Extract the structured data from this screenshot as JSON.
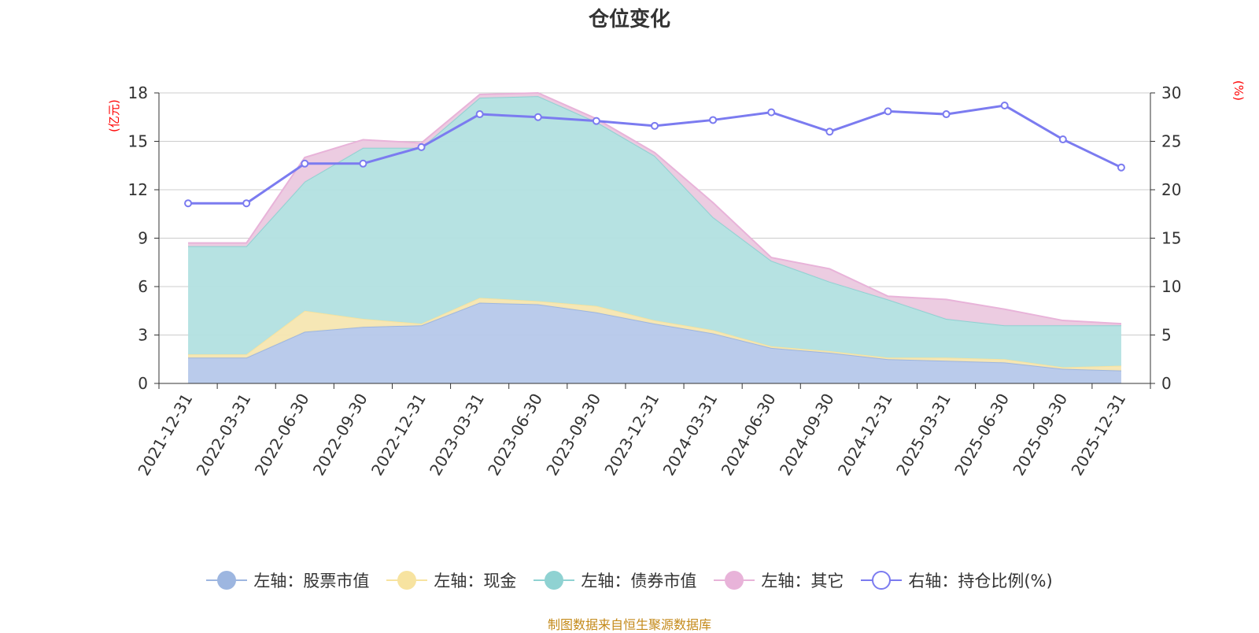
{
  "chart_data": {
    "type": "area",
    "title": "仓位变化",
    "left_axis_unit": "(亿元)",
    "right_axis_unit": "(%)",
    "categories": [
      "2021-12-31",
      "2022-03-31",
      "2022-06-30",
      "2022-09-30",
      "2022-12-31",
      "2023-03-31",
      "2023-06-30",
      "2023-09-30",
      "2023-12-31",
      "2024-03-31",
      "2024-06-30",
      "2024-09-30",
      "2024-12-31",
      "2025-03-31",
      "2025-06-30",
      "2025-09-30",
      "2025-12-31"
    ],
    "left_ylim": [
      0,
      18
    ],
    "left_ticks": [
      0,
      3,
      6,
      9,
      12,
      15,
      18
    ],
    "right_ylim": [
      0,
      30
    ],
    "right_ticks": [
      0,
      5,
      10,
      15,
      20,
      25,
      30
    ],
    "stacked_series": [
      {
        "name": "左轴：股票市值",
        "color": "#9db6e0",
        "fill": "#b6c8ea",
        "values": [
          1.6,
          1.6,
          3.2,
          3.5,
          3.6,
          5.0,
          4.9,
          4.4,
          3.7,
          3.1,
          2.2,
          1.9,
          1.5,
          1.4,
          1.3,
          0.9,
          0.8
        ]
      },
      {
        "name": "左轴：现金",
        "color": "#f7e3a0",
        "fill": "#f6e6b1",
        "values": [
          0.2,
          0.2,
          1.3,
          0.5,
          0.1,
          0.3,
          0.2,
          0.4,
          0.2,
          0.2,
          0.1,
          0.1,
          0.1,
          0.2,
          0.2,
          0.1,
          0.3
        ]
      },
      {
        "name": "左轴：债券市值",
        "color": "#8fd2d2",
        "fill": "#b2e0e0",
        "values": [
          6.7,
          6.7,
          8.0,
          10.6,
          10.9,
          12.4,
          12.7,
          11.4,
          10.2,
          7.0,
          5.3,
          4.3,
          3.6,
          2.4,
          2.1,
          2.6,
          2.5
        ]
      },
      {
        "name": "左轴：其它",
        "color": "#e8b3d9",
        "fill": "#ebc9df",
        "values": [
          0.2,
          0.2,
          1.5,
          0.5,
          0.3,
          0.2,
          0.2,
          0.2,
          0.2,
          0.9,
          0.2,
          0.8,
          0.2,
          1.2,
          1.0,
          0.3,
          0.1
        ]
      }
    ],
    "line_series": {
      "name": "右轴：持仓比例(%)",
      "color": "#7b7bf0",
      "values": [
        18.6,
        18.6,
        22.7,
        22.7,
        24.4,
        27.8,
        27.5,
        27.1,
        26.6,
        27.2,
        28.0,
        26.0,
        28.1,
        27.8,
        28.7,
        25.2,
        22.3
      ]
    }
  },
  "legend": [
    {
      "label": "左轴：股票市值",
      "color": "#9db6e0",
      "kind": "filled"
    },
    {
      "label": "左轴：现金",
      "color": "#f7e3a0",
      "kind": "filled"
    },
    {
      "label": "左轴：债券市值",
      "color": "#8fd2d2",
      "kind": "filled"
    },
    {
      "label": "左轴：其它",
      "color": "#e8b3d9",
      "kind": "filled"
    },
    {
      "label": "右轴：持仓比例(%)",
      "color": "#7b7bf0",
      "kind": "hollow"
    }
  ],
  "source_text": "制图数据来自恒生聚源数据库"
}
